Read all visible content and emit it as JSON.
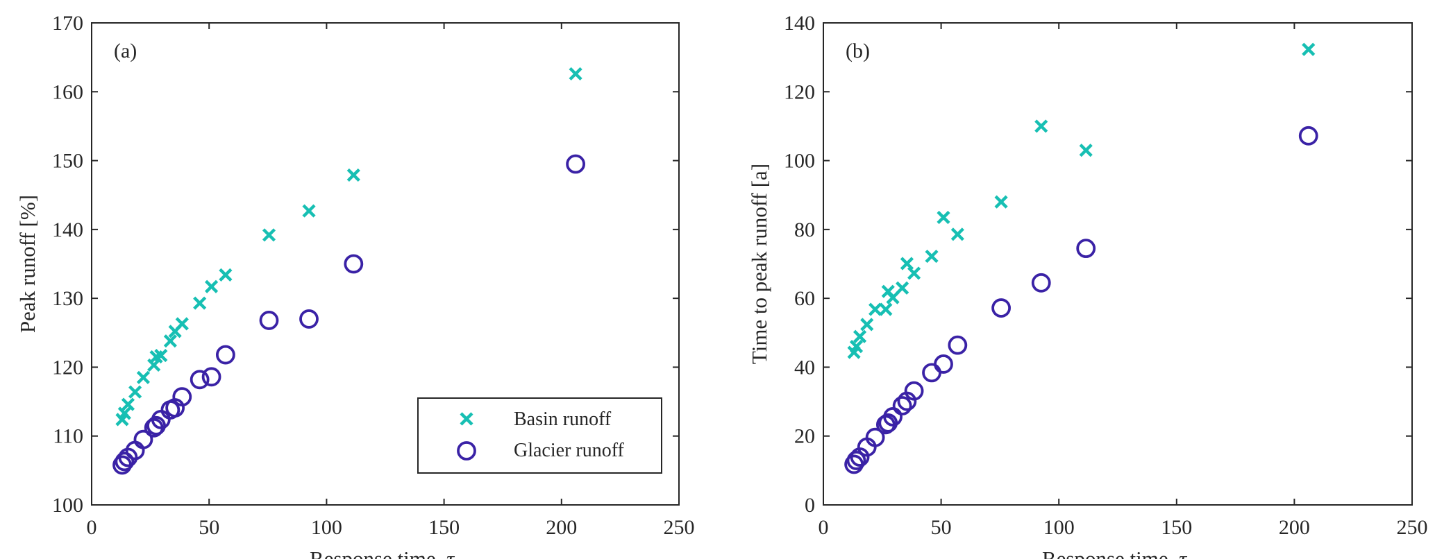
{
  "colors": {
    "basin": "#17bfb3",
    "glacier": "#3a22a6",
    "axis": "#262626"
  },
  "legend": {
    "basin_label": "Basin runoff",
    "glacier_label": "Glacier runoff",
    "placement": "bottom-right of panel (a)"
  },
  "chart_data": [
    {
      "type": "scatter",
      "panel_label": "(a)",
      "xlabel": "Response time, τ_v",
      "ylabel": "Peak runoff [%]",
      "xlim": [
        0,
        250
      ],
      "ylim": [
        100,
        170
      ],
      "xticks": [
        0,
        50,
        100,
        150,
        200,
        250
      ],
      "yticks": [
        100,
        110,
        120,
        130,
        140,
        150,
        160,
        170
      ],
      "grid": false,
      "x": [
        13,
        14,
        15.5,
        18.5,
        22,
        26.5,
        27.5,
        29.5,
        33.5,
        35.5,
        38.5,
        46,
        51,
        57,
        75.5,
        92.5,
        111.5,
        206
      ],
      "series": [
        {
          "name": "Basin runoff",
          "marker": "x",
          "values": [
            112.4,
            113.3,
            114.6,
            116.4,
            118.5,
            120.3,
            121.5,
            121.7,
            123.8,
            125.2,
            126.3,
            129.3,
            131.7,
            133.4,
            139.2,
            142.7,
            147.9,
            162.6
          ]
        },
        {
          "name": "Glacier runoff",
          "marker": "o",
          "values": [
            105.8,
            106.3,
            106.9,
            107.9,
            109.5,
            111.2,
            111.5,
            112.4,
            113.8,
            114.1,
            115.7,
            118.2,
            118.6,
            121.8,
            126.8,
            127.0,
            135.0,
            149.5
          ]
        }
      ]
    },
    {
      "type": "scatter",
      "panel_label": "(b)",
      "xlabel": "Response time, τ_v",
      "ylabel": "Time to peak runoff [a]",
      "xlim": [
        0,
        250
      ],
      "ylim": [
        0,
        140
      ],
      "xticks": [
        0,
        50,
        100,
        150,
        200,
        250
      ],
      "yticks": [
        0,
        20,
        40,
        60,
        80,
        100,
        120,
        140
      ],
      "grid": false,
      "x": [
        13,
        14,
        15.5,
        18.5,
        22,
        26.5,
        27.5,
        29.5,
        33.5,
        35.5,
        38.5,
        46,
        51,
        57,
        75.5,
        92.5,
        111.5,
        206
      ],
      "series": [
        {
          "name": "Basin runoff",
          "marker": "x",
          "values": [
            44.3,
            46.0,
            48.9,
            52.4,
            56.8,
            56.8,
            62.0,
            60.2,
            63.0,
            70.1,
            67.3,
            72.2,
            83.5,
            78.6,
            88.0,
            110.0,
            103.0,
            132.3
          ]
        },
        {
          "name": "Glacier runoff",
          "marker": "o",
          "values": [
            11.8,
            12.9,
            13.9,
            16.8,
            19.6,
            23.3,
            23.8,
            25.6,
            28.8,
            30.1,
            33.1,
            38.4,
            40.9,
            46.4,
            57.2,
            64.5,
            74.5,
            107.2
          ]
        }
      ]
    }
  ]
}
